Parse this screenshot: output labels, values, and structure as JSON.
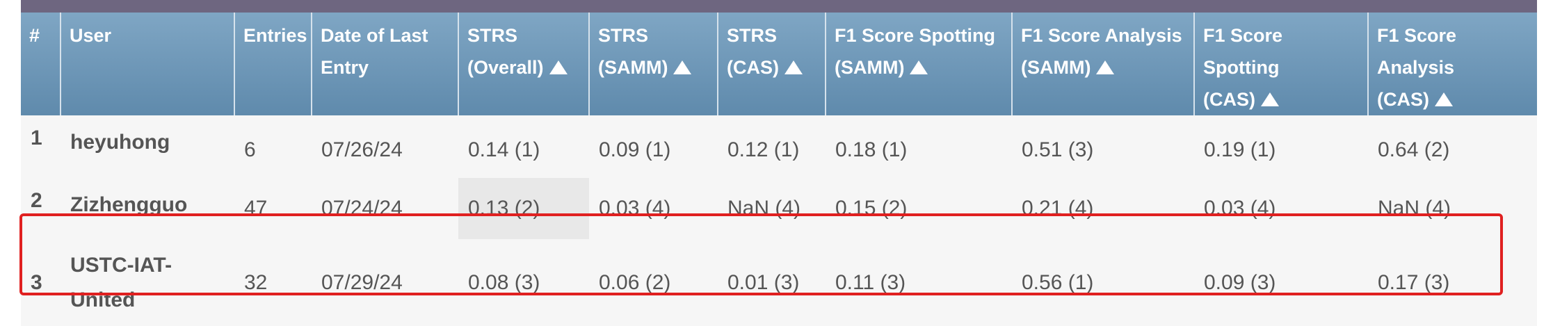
{
  "columns": [
    {
      "line1": "#",
      "line2": "",
      "sortable": false
    },
    {
      "line1": "User",
      "line2": "",
      "sortable": false
    },
    {
      "line1": "Entries",
      "line2": "",
      "sortable": false
    },
    {
      "line1": "Date of Last",
      "line2": "Entry",
      "sortable": false
    },
    {
      "line1": "STRS",
      "line2": "(Overall)",
      "sortable": true
    },
    {
      "line1": "STRS",
      "line2": "(SAMM)",
      "sortable": true
    },
    {
      "line1": "STRS",
      "line2": "(CAS)",
      "sortable": true
    },
    {
      "line1": "F1 Score Spotting",
      "line2": "(SAMM)",
      "sortable": true
    },
    {
      "line1": "F1 Score Analysis",
      "line2": "(SAMM)",
      "sortable": true
    },
    {
      "line1": "F1 Score Spotting",
      "line2": "(CAS)",
      "sortable": true
    },
    {
      "line1": "F1 Score Analysis",
      "line2": "(CAS)",
      "sortable": true
    }
  ],
  "rows": [
    {
      "rank": "1",
      "user_lines": [
        "heyuhong"
      ],
      "entries": "6",
      "date": "07/26/24",
      "scores": [
        "0.14 (1)",
        "0.09 (1)",
        "0.12 (1)",
        "0.18 (1)",
        "0.51 (3)",
        "0.19 (1)",
        "0.64 (2)"
      ]
    },
    {
      "rank": "2",
      "user_lines": [
        "Zizhengguo"
      ],
      "entries": "47",
      "date": "07/24/24",
      "scores": [
        "0.13 (2)",
        "0.03 (4)",
        "NaN (4)",
        "0.15 (2)",
        "0.21 (4)",
        "0.03 (4)",
        "NaN (4)"
      ]
    },
    {
      "rank": "3",
      "user_lines": [
        "USTC-IAT-",
        "United"
      ],
      "entries": "32",
      "date": "07/29/24",
      "scores": [
        "0.08 (3)",
        "0.06 (2)",
        "0.01 (3)",
        "0.11 (3)",
        "0.56 (1)",
        "0.09 (3)",
        "0.17 (3)"
      ]
    }
  ],
  "highlighted_cell": {
    "row": 1,
    "score_col": 0
  },
  "highlighted_row": 2,
  "colors": {
    "header": "#6f98b8",
    "user_link": "#1f7a1f",
    "highlight_border": "#e02020"
  }
}
